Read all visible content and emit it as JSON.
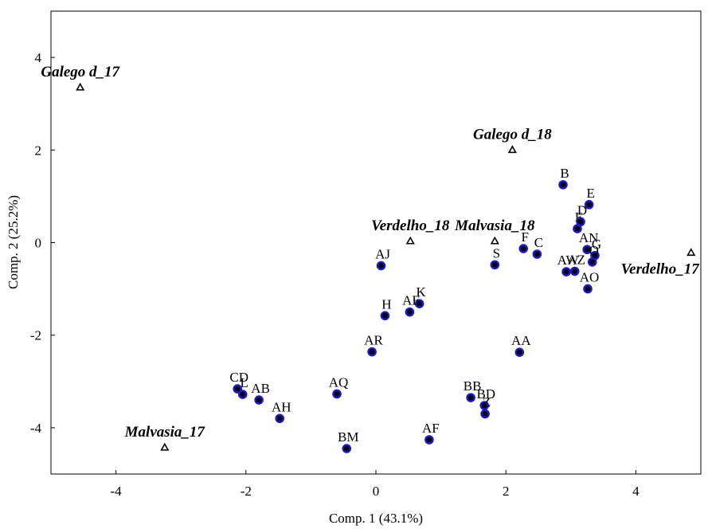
{
  "chart_data": {
    "type": "scatter",
    "title": "",
    "xlabel": "Comp. 1  (43.1%)",
    "ylabel": "Comp. 2 (25.2%)",
    "xlim": [
      -5,
      5
    ],
    "ylim": [
      -5,
      5
    ],
    "x_ticks": [
      -4,
      -2,
      0,
      2,
      4
    ],
    "y_ticks": [
      -4,
      -2,
      0,
      2,
      4
    ],
    "grid": false,
    "series": [
      {
        "marker": "filled-circle",
        "color": "#1a1ad0",
        "points": [
          {
            "label": "B",
            "x": 2.88,
            "y": 1.25
          },
          {
            "label": "E",
            "x": 3.28,
            "y": 0.82
          },
          {
            "label": "D",
            "x": 3.15,
            "y": 0.45
          },
          {
            "label": "E",
            "x": 3.1,
            "y": 0.3
          },
          {
            "label": "F",
            "x": 2.27,
            "y": -0.13
          },
          {
            "label": "C",
            "x": 2.48,
            "y": -0.25
          },
          {
            "label": "AN",
            "x": 3.25,
            "y": -0.15
          },
          {
            "label": "G",
            "x": 3.37,
            "y": -0.28
          },
          {
            "label": "O",
            "x": 3.33,
            "y": -0.42
          },
          {
            "label": "AW",
            "x": 2.93,
            "y": -0.63
          },
          {
            "label": "AZ",
            "x": 3.06,
            "y": -0.62
          },
          {
            "label": "AO",
            "x": 3.26,
            "y": -1.0
          },
          {
            "label": "S",
            "x": 1.83,
            "y": -0.48
          },
          {
            "label": "AJ",
            "x": 0.08,
            "y": -0.5
          },
          {
            "label": "K",
            "x": 0.67,
            "y": -1.32
          },
          {
            "label": "AE",
            "x": 0.52,
            "y": -1.5
          },
          {
            "label": "H",
            "x": 0.14,
            "y": -1.58
          },
          {
            "label": "AR",
            "x": -0.06,
            "y": -2.36
          },
          {
            "label": "AA",
            "x": 2.21,
            "y": -2.37
          },
          {
            "label": "CD",
            "x": -2.13,
            "y": -3.16
          },
          {
            "label": "L",
            "x": -2.05,
            "y": -3.28
          },
          {
            "label": "AB",
            "x": -1.8,
            "y": -3.4
          },
          {
            "label": "AQ",
            "x": -0.6,
            "y": -3.27
          },
          {
            "label": "AH",
            "x": -1.48,
            "y": -3.8
          },
          {
            "label": "BM",
            "x": -0.45,
            "y": -4.45
          },
          {
            "label": "BB",
            "x": 1.46,
            "y": -3.35
          },
          {
            "label": "BD",
            "x": 1.67,
            "y": -3.52
          },
          {
            "label": "Z",
            "x": 1.68,
            "y": -3.7
          },
          {
            "label": "AF",
            "x": 0.82,
            "y": -4.26
          }
        ]
      },
      {
        "marker": "open-triangle",
        "color": "#000000",
        "points": [
          {
            "label": "Galego d_17",
            "x": -4.55,
            "y": 3.35
          },
          {
            "label": "Galego d_18",
            "x": 2.1,
            "y": 2.0
          },
          {
            "label": "Verdelho_18",
            "x": 0.53,
            "y": 0.03
          },
          {
            "label": "Malvasia_18",
            "x": 1.83,
            "y": 0.03
          },
          {
            "label": "Verdelho_17",
            "x": 4.85,
            "y": -0.22
          },
          {
            "label": "Malvasia_17",
            "x": -3.25,
            "y": -4.43
          }
        ]
      }
    ]
  }
}
